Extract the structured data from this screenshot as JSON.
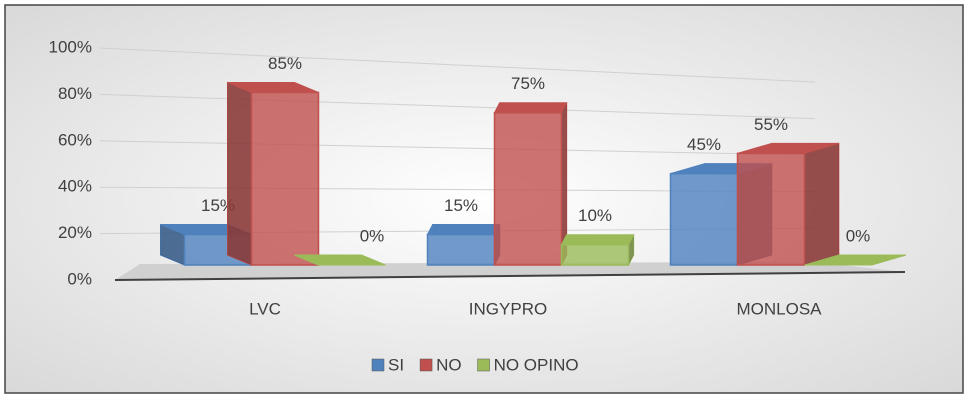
{
  "chart_data": {
    "type": "bar3d",
    "categories": [
      "LVC",
      "INGYPRO",
      "MONLOSA"
    ],
    "series": [
      {
        "name": "SI",
        "color": "#4f81bd",
        "values": [
          15,
          15,
          45
        ],
        "value_labels": [
          "15%",
          "15%",
          "45%"
        ]
      },
      {
        "name": "NO",
        "color": "#c0504d",
        "values": [
          85,
          75,
          55
        ],
        "value_labels": [
          "85%",
          "75%",
          "55%"
        ]
      },
      {
        "name": "NO OPINO",
        "color": "#9bbb59",
        "values": [
          0,
          10,
          0
        ],
        "value_labels": [
          "0%",
          "10%",
          "0%"
        ]
      }
    ],
    "ylim": [
      0,
      100
    ],
    "yticks": [
      {
        "value": 0,
        "label": "0%"
      },
      {
        "value": 20,
        "label": "20%"
      },
      {
        "value": 40,
        "label": "40%"
      },
      {
        "value": 60,
        "label": "60%"
      },
      {
        "value": 80,
        "label": "80%"
      },
      {
        "value": 100,
        "label": "100%"
      }
    ],
    "grid": true,
    "legend": "bottom"
  }
}
